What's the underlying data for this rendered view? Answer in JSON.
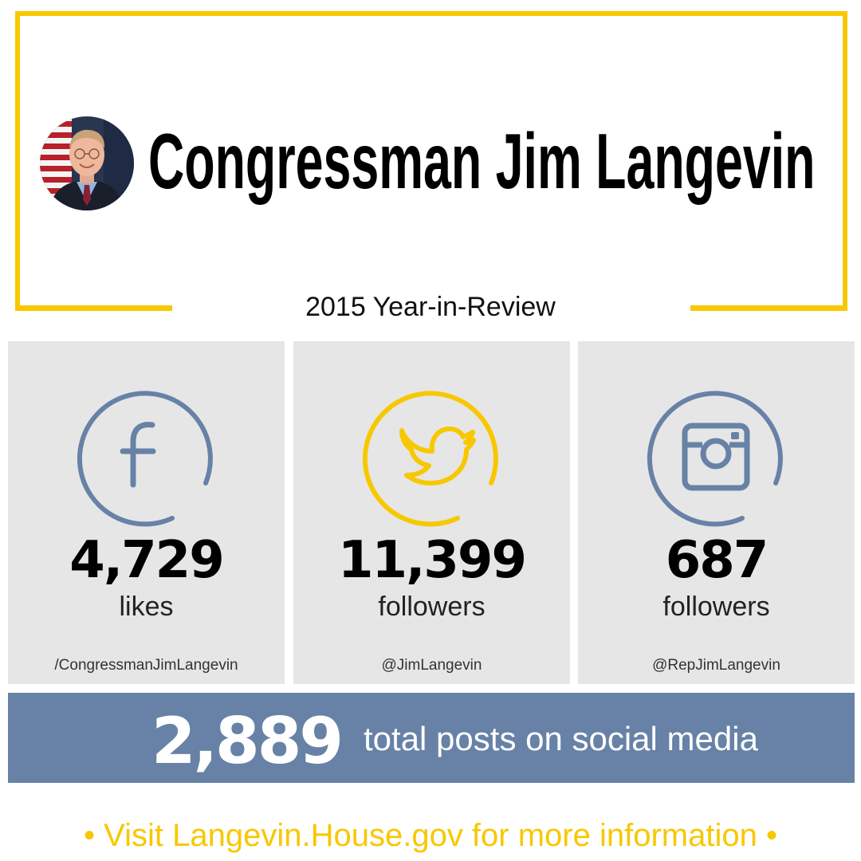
{
  "header": {
    "title": "Congressman Jim Langevin",
    "subtitle": "2015 Year-in-Review",
    "avatar_alt": "portrait"
  },
  "cards": [
    {
      "icon": "facebook-icon",
      "count": "4,729",
      "unit": "likes",
      "handle": "/CongressmanJimLangevin",
      "color": "#6782a6"
    },
    {
      "icon": "twitter-icon",
      "count": "11,399",
      "unit": "followers",
      "handle": "@JimLangevin",
      "color": "#f7c800"
    },
    {
      "icon": "instagram-icon",
      "count": "687",
      "unit": "followers",
      "handle": "@RepJimLangevin",
      "color": "#6782a6"
    }
  ],
  "banner": {
    "total": "2,889",
    "text": "total posts on social media"
  },
  "footer": {
    "text": "• Visit Langevin.House.gov for more information •"
  },
  "colors": {
    "accent_yellow": "#f7c800",
    "accent_blue": "#6782a6",
    "card_bg": "#e6e6e6"
  }
}
